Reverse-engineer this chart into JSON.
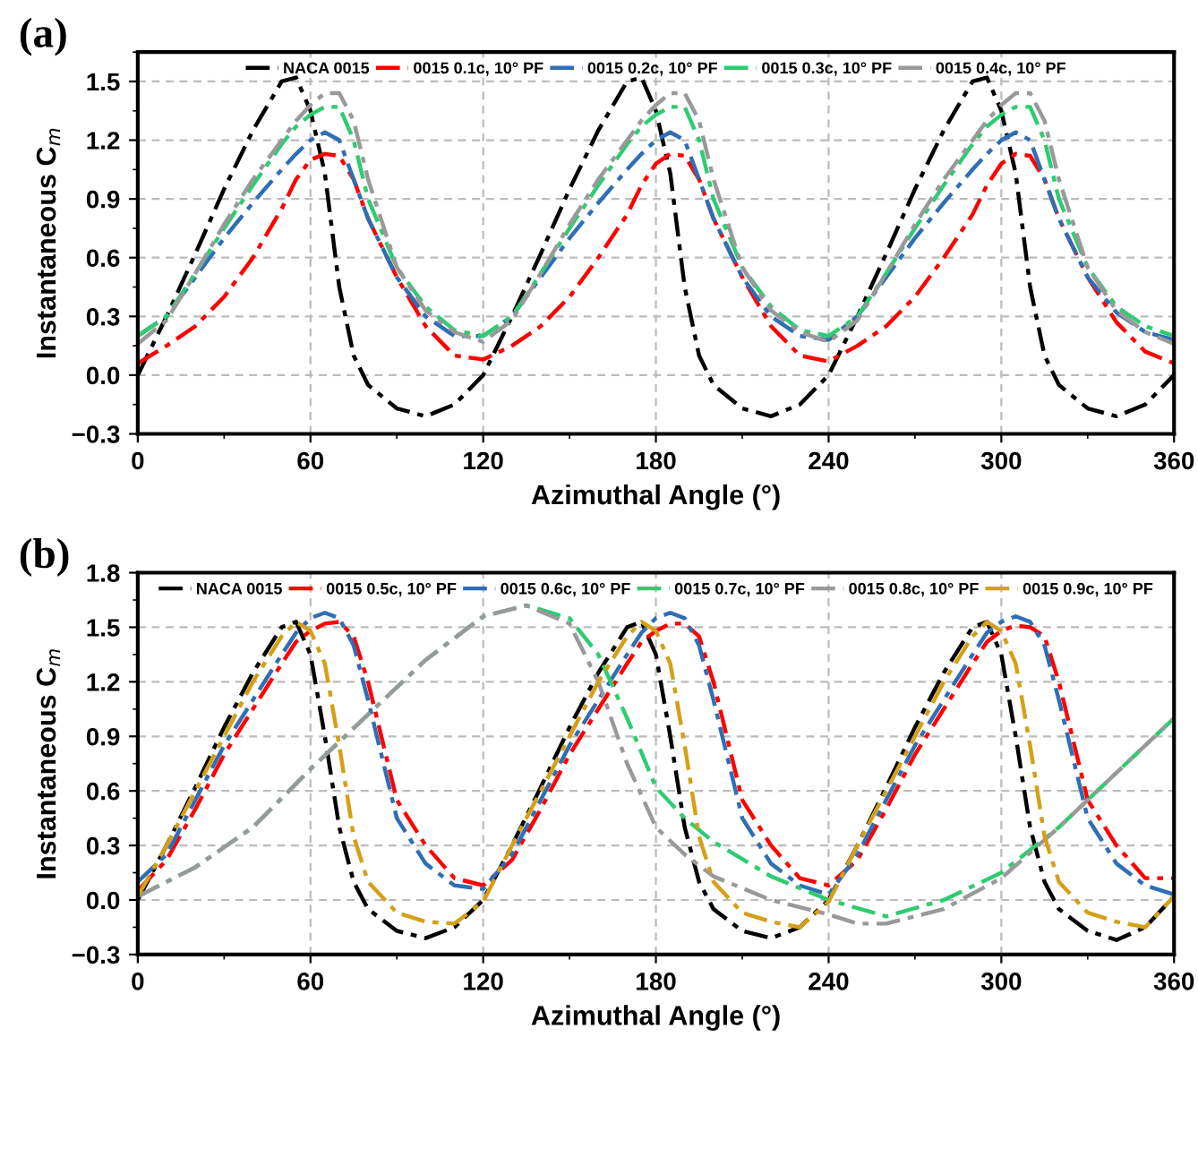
{
  "chart_data": [
    {
      "type": "line",
      "title": "(a)",
      "xlabel": "Azimuthal Angle (°)",
      "ylabel": "Instantaneous C$_{m}$",
      "xlim": [
        0,
        360
      ],
      "xticks": [
        0,
        60,
        120,
        180,
        240,
        300,
        360
      ],
      "ylim": [
        -0.3,
        1.65
      ],
      "yticks": [
        -0.3,
        {
          "value": 0,
          "label": "0.0"
        },
        0.3,
        0.6,
        0.9,
        1.2,
        1.5
      ],
      "grid": true,
      "legend": "top",
      "line_style": "dashed",
      "marker": "none",
      "x": [
        0,
        10,
        20,
        30,
        40,
        50,
        55,
        60,
        65,
        70,
        75,
        80,
        90,
        100,
        110,
        120,
        130,
        140,
        150,
        160,
        170,
        175,
        180,
        185,
        190,
        195,
        200,
        210,
        220,
        230,
        240,
        250,
        260,
        270,
        280,
        290,
        295,
        300,
        305,
        310,
        315,
        320,
        330,
        340,
        350,
        360
      ],
      "series": [
        {
          "name": "NACA 0015",
          "color": "#000000",
          "values": [
            0,
            0.3,
            0.62,
            0.95,
            1.25,
            1.5,
            1.52,
            1.35,
            1.03,
            0.45,
            0.1,
            -0.05,
            -0.17,
            -0.21,
            -0.15,
            0,
            0.3,
            0.62,
            0.95,
            1.25,
            1.5,
            1.52,
            1.35,
            1.03,
            0.45,
            0.1,
            -0.05,
            -0.17,
            -0.21,
            -0.15,
            0,
            0.3,
            0.62,
            0.95,
            1.25,
            1.5,
            1.52,
            1.35,
            1.03,
            0.45,
            0.1,
            -0.05,
            -0.17,
            -0.21,
            -0.15,
            0
          ]
        },
        {
          "name": "0015 0.1c, 10° PF",
          "color": "#ff0000",
          "values": [
            0.06,
            0.15,
            0.25,
            0.4,
            0.6,
            0.85,
            1.0,
            1.1,
            1.13,
            1.12,
            1.0,
            0.8,
            0.5,
            0.25,
            0.1,
            0.08,
            0.15,
            0.25,
            0.4,
            0.6,
            0.82,
            0.97,
            1.08,
            1.13,
            1.12,
            1.0,
            0.8,
            0.5,
            0.25,
            0.1,
            0.07,
            0.15,
            0.25,
            0.4,
            0.6,
            0.82,
            0.97,
            1.08,
            1.13,
            1.12,
            1.0,
            0.8,
            0.5,
            0.27,
            0.12,
            0.06
          ]
        },
        {
          "name": "0015 0.2c, 10° PF",
          "color": "#2f6eb5",
          "values": [
            0.2,
            0.3,
            0.5,
            0.7,
            0.88,
            1.05,
            1.13,
            1.2,
            1.24,
            1.2,
            1.0,
            0.8,
            0.5,
            0.3,
            0.2,
            0.2,
            0.3,
            0.5,
            0.7,
            0.88,
            1.05,
            1.13,
            1.2,
            1.24,
            1.2,
            1.0,
            0.8,
            0.5,
            0.3,
            0.2,
            0.18,
            0.3,
            0.5,
            0.7,
            0.88,
            1.05,
            1.13,
            1.2,
            1.24,
            1.2,
            1.0,
            0.8,
            0.5,
            0.32,
            0.22,
            0.18
          ]
        },
        {
          "name": "0015 0.3c, 10° PF",
          "color": "#2ecc71",
          "values": [
            0.2,
            0.3,
            0.52,
            0.75,
            0.97,
            1.18,
            1.27,
            1.33,
            1.37,
            1.37,
            1.2,
            0.9,
            0.55,
            0.35,
            0.23,
            0.2,
            0.3,
            0.52,
            0.75,
            0.97,
            1.18,
            1.27,
            1.33,
            1.37,
            1.37,
            1.2,
            0.9,
            0.55,
            0.35,
            0.23,
            0.2,
            0.3,
            0.52,
            0.75,
            0.97,
            1.18,
            1.27,
            1.33,
            1.37,
            1.37,
            1.2,
            0.9,
            0.55,
            0.35,
            0.25,
            0.2
          ]
        },
        {
          "name": "0015 0.4c, 10° PF",
          "color": "#999999",
          "values": [
            0.16,
            0.28,
            0.52,
            0.77,
            1.0,
            1.2,
            1.3,
            1.38,
            1.44,
            1.44,
            1.3,
            1.0,
            0.55,
            0.33,
            0.22,
            0.17,
            0.28,
            0.52,
            0.77,
            1.0,
            1.2,
            1.3,
            1.38,
            1.44,
            1.44,
            1.3,
            1.0,
            0.55,
            0.33,
            0.22,
            0.17,
            0.28,
            0.52,
            0.77,
            1.0,
            1.2,
            1.3,
            1.38,
            1.44,
            1.44,
            1.3,
            1.0,
            0.55,
            0.33,
            0.22,
            0.16
          ]
        }
      ]
    },
    {
      "type": "line",
      "title": "(b)",
      "xlabel": "Azimuthal Angle (°)",
      "ylabel": "Instantaneous C$_{m}$",
      "xlim": [
        0,
        360
      ],
      "xticks": [
        0,
        60,
        120,
        180,
        240,
        300,
        360
      ],
      "ylim": [
        -0.3,
        1.8
      ],
      "yticks": [
        -0.3,
        {
          "value": 0,
          "label": "0.0"
        },
        0.3,
        0.6,
        0.9,
        1.2,
        1.5,
        1.8
      ],
      "grid": true,
      "legend": "top",
      "line_style": "dashed",
      "marker": "none",
      "x": [
        0,
        10,
        20,
        30,
        40,
        50,
        55,
        60,
        65,
        70,
        75,
        80,
        90,
        100,
        110,
        120,
        130,
        140,
        150,
        160,
        170,
        175,
        180,
        185,
        190,
        195,
        200,
        210,
        220,
        230,
        240,
        250,
        260,
        270,
        280,
        290,
        295,
        300,
        305,
        310,
        315,
        320,
        330,
        340,
        350,
        360
      ],
      "series": [
        {
          "name": "NACA 0015",
          "color": "#000000",
          "values": [
            0,
            0.3,
            0.62,
            0.95,
            1.25,
            1.5,
            1.53,
            1.35,
            0.9,
            0.4,
            0.1,
            -0.05,
            -0.17,
            -0.21,
            -0.15,
            0,
            0.3,
            0.62,
            0.95,
            1.25,
            1.5,
            1.53,
            1.35,
            0.9,
            0.4,
            0.1,
            -0.05,
            -0.17,
            -0.21,
            -0.15,
            0,
            0.3,
            0.62,
            0.95,
            1.25,
            1.5,
            1.53,
            1.35,
            0.9,
            0.4,
            0.1,
            -0.05,
            -0.17,
            -0.22,
            -0.15,
            0.02
          ]
        },
        {
          "name": "0015 0.5c, 10° PF",
          "color": "#ff0000",
          "values": [
            0.05,
            0.22,
            0.5,
            0.8,
            1.05,
            1.3,
            1.42,
            1.48,
            1.52,
            1.53,
            1.45,
            1.2,
            0.55,
            0.3,
            0.12,
            0.08,
            0.22,
            0.5,
            0.8,
            1.05,
            1.3,
            1.42,
            1.48,
            1.52,
            1.52,
            1.45,
            1.2,
            0.55,
            0.3,
            0.12,
            0.08,
            0.22,
            0.5,
            0.8,
            1.05,
            1.3,
            1.42,
            1.48,
            1.51,
            1.5,
            1.45,
            1.2,
            0.55,
            0.3,
            0.12,
            0.12
          ]
        },
        {
          "name": "0015 0.6c, 10° PF",
          "color": "#2f6eb5",
          "values": [
            0.1,
            0.25,
            0.55,
            0.85,
            1.1,
            1.35,
            1.47,
            1.55,
            1.58,
            1.55,
            1.4,
            1.1,
            0.45,
            0.2,
            0.08,
            0.06,
            0.25,
            0.55,
            0.85,
            1.1,
            1.35,
            1.47,
            1.55,
            1.58,
            1.55,
            1.4,
            1.1,
            0.45,
            0.2,
            0.08,
            0.03,
            0.25,
            0.55,
            0.85,
            1.1,
            1.35,
            1.47,
            1.53,
            1.56,
            1.53,
            1.4,
            1.1,
            0.45,
            0.2,
            0.08,
            0.03
          ]
        },
        {
          "name": "0015 0.7c, 10° PF",
          "color": "#2ecc71",
          "x": [
            0,
            20,
            40,
            60,
            80,
            100,
            120,
            135,
            150,
            160,
            170,
            180,
            190,
            200,
            220,
            240,
            260,
            280,
            300,
            320,
            340,
            360
          ],
          "values": [
            0.02,
            0.18,
            0.4,
            0.72,
            1.02,
            1.32,
            1.56,
            1.62,
            1.55,
            1.35,
            1.0,
            0.62,
            0.45,
            0.32,
            0.13,
            0.0,
            -0.09,
            0.0,
            0.15,
            0.4,
            0.7,
            1.0
          ]
        },
        {
          "name": "0015 0.8c, 10° PF",
          "color": "#999999",
          "x": [
            0,
            20,
            40,
            60,
            80,
            100,
            120,
            135,
            150,
            160,
            170,
            180,
            190,
            200,
            220,
            240,
            250,
            260,
            280,
            300,
            320,
            340,
            360
          ],
          "values": [
            0.02,
            0.18,
            0.4,
            0.72,
            1.02,
            1.32,
            1.56,
            1.62,
            1.52,
            1.2,
            0.75,
            0.4,
            0.25,
            0.13,
            0.0,
            -0.08,
            -0.13,
            -0.13,
            -0.05,
            0.12,
            0.4,
            0.7,
            1.0
          ]
        },
        {
          "name": "0015 0.9c, 10° PF",
          "color": "#d4a017",
          "values": [
            0.02,
            0.3,
            0.6,
            0.9,
            1.2,
            1.45,
            1.53,
            1.48,
            1.3,
            0.85,
            0.35,
            0.1,
            -0.07,
            -0.12,
            -0.13,
            -0.01,
            0.3,
            0.6,
            0.9,
            1.2,
            1.45,
            1.53,
            1.48,
            1.3,
            0.85,
            0.35,
            0.1,
            -0.07,
            -0.12,
            -0.15,
            -0.01,
            0.3,
            0.6,
            0.9,
            1.2,
            1.45,
            1.53,
            1.48,
            1.3,
            0.85,
            0.35,
            0.1,
            -0.07,
            -0.12,
            -0.15,
            0.02
          ]
        }
      ]
    }
  ]
}
